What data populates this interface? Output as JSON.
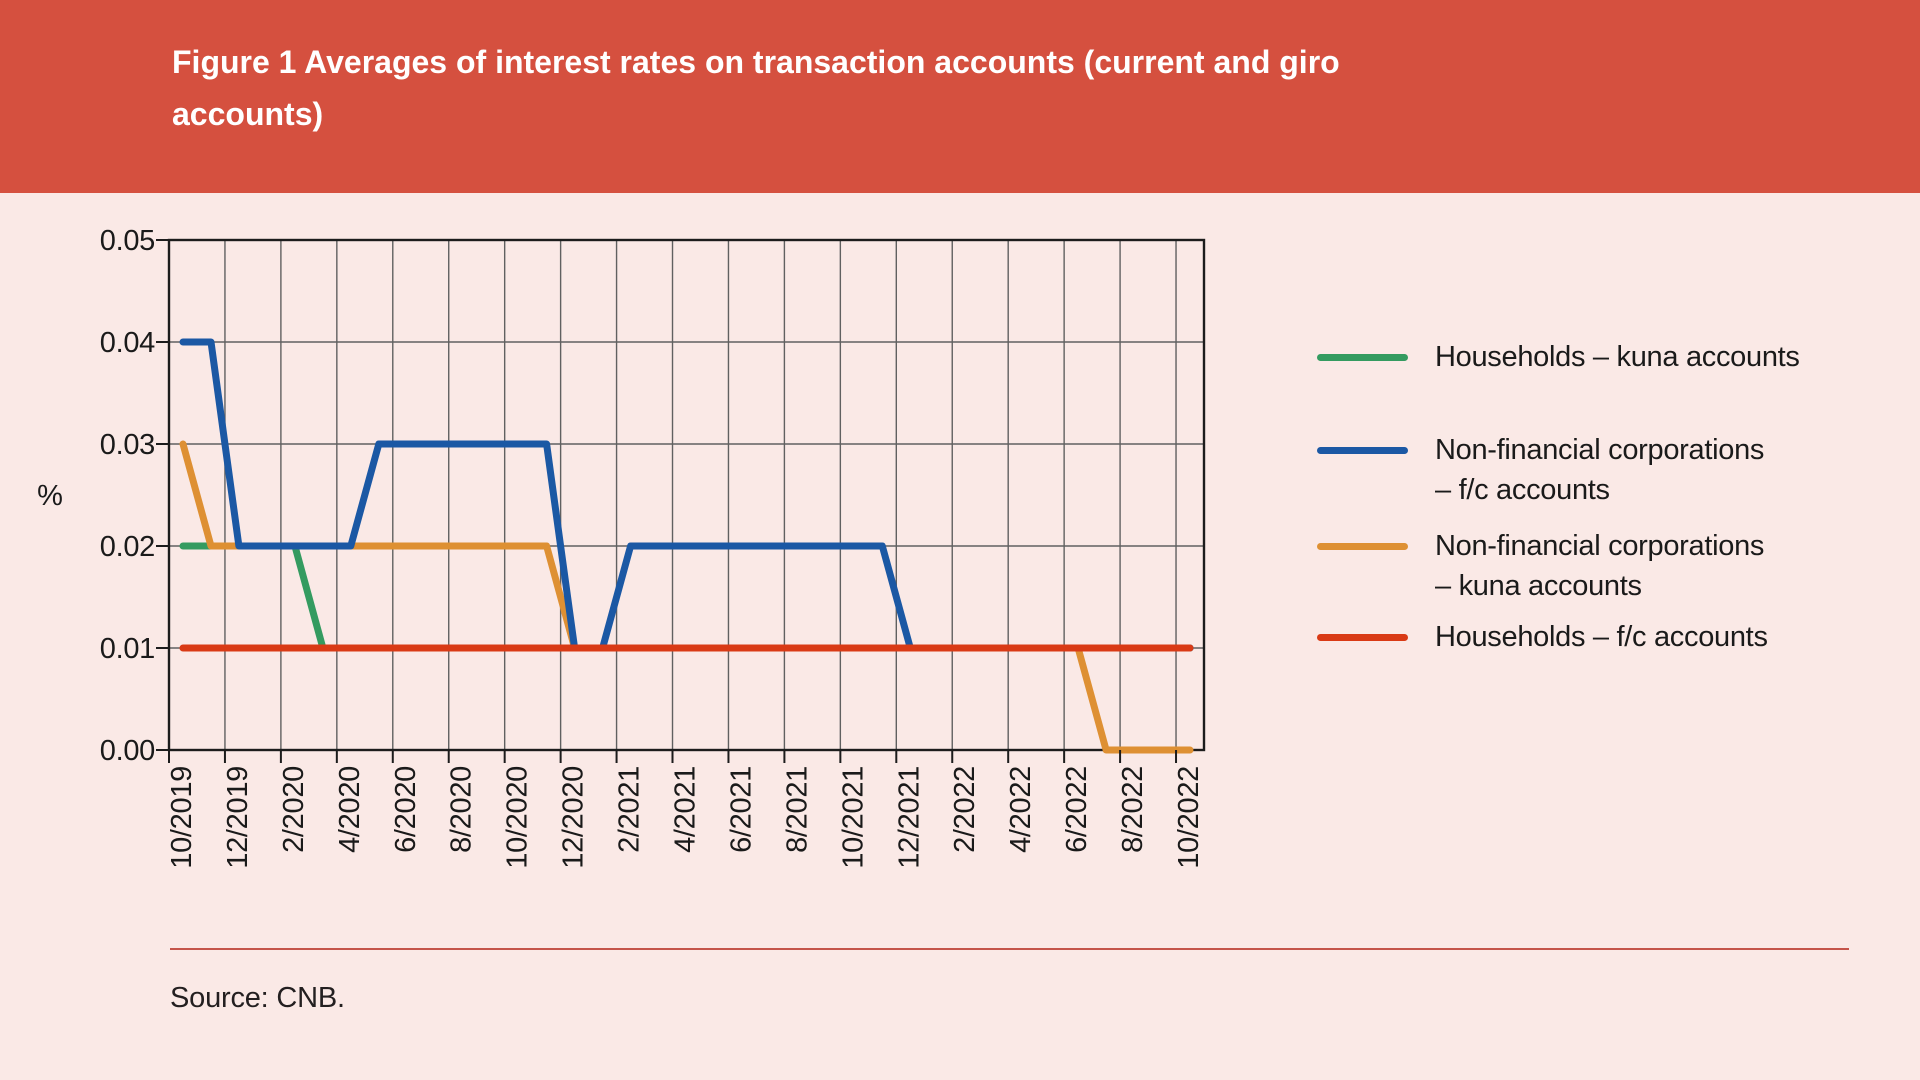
{
  "header": {
    "title": "Figure 1 Averages of interest rates on transaction accounts (current and giro accounts)",
    "title_lines": [
      "Figure 1 Averages of interest rates on transaction accounts (current and giro",
      "accounts)"
    ]
  },
  "footer": {
    "source": "Source: CNB."
  },
  "colors": {
    "banner": "#D5503F",
    "background": "#FAE9E6",
    "footer_rule": "#C4544A",
    "grid": "#606060",
    "frame": "#1C1C1C",
    "axis_text": "#1A1A1A"
  },
  "chart_data": {
    "type": "line",
    "title": "Figure 1 Averages of interest rates on transaction accounts (current and giro accounts)",
    "xlabel": "",
    "ylabel": "%",
    "ylim": [
      0,
      0.05
    ],
    "y_ticks": [
      0,
      0.01,
      0.02,
      0.03,
      0.04,
      0.05
    ],
    "y_tick_labels": [
      "0.00",
      "0.01",
      "0.02",
      "0.03",
      "0.04",
      "0.05"
    ],
    "grid": true,
    "legend_position": "right",
    "x": [
      "10/2019",
      "11/2019",
      "12/2019",
      "1/2020",
      "2/2020",
      "3/2020",
      "4/2020",
      "5/2020",
      "6/2020",
      "7/2020",
      "8/2020",
      "9/2020",
      "10/2020",
      "11/2020",
      "12/2020",
      "1/2021",
      "2/2021",
      "3/2021",
      "4/2021",
      "5/2021",
      "6/2021",
      "7/2021",
      "8/2021",
      "9/2021",
      "10/2021",
      "11/2021",
      "12/2021",
      "1/2022",
      "2/2022",
      "3/2022",
      "4/2022",
      "5/2022",
      "6/2022",
      "7/2022",
      "8/2022",
      "9/2022",
      "10/2022"
    ],
    "x_tick_labels": [
      "10/2019",
      "12/2019",
      "2/2020",
      "4/2020",
      "6/2020",
      "8/2020",
      "10/2020",
      "12/2020",
      "2/2021",
      "4/2021",
      "6/2021",
      "8/2021",
      "10/2021",
      "12/2021",
      "2/2022",
      "4/2022",
      "6/2022",
      "8/2022",
      "10/2022"
    ],
    "draw_order": [
      0,
      2,
      1,
      3
    ],
    "series": [
      {
        "key": "households-kuna",
        "name": "Households – kuna accounts",
        "label_lines": [
          "Households – kuna accounts"
        ],
        "color": "#349B60",
        "values": [
          0.02,
          0.02,
          0.02,
          0.02,
          0.02,
          0.01,
          0.01,
          0.01,
          0.01,
          0.01,
          0.01,
          0.01,
          0.01,
          0.01,
          0.01,
          0.01,
          0.01,
          0.01,
          0.01,
          0.01,
          0.01,
          0.01,
          0.01,
          0.01,
          0.01,
          0.01,
          0.01,
          0.01,
          0.01,
          0.01,
          0.01,
          0.01,
          0.01,
          0.01,
          0.01,
          0.01,
          0.01
        ]
      },
      {
        "key": "nfc-fc",
        "name": "Non-financial corporations – f/c accounts",
        "label_lines": [
          "Non-financial corporations",
          "– f/c accounts"
        ],
        "color": "#1B58A4",
        "values": [
          0.04,
          0.04,
          0.02,
          0.02,
          0.02,
          0.02,
          0.02,
          0.03,
          0.03,
          0.03,
          0.03,
          0.03,
          0.03,
          0.03,
          0.01,
          0.01,
          0.02,
          0.02,
          0.02,
          0.02,
          0.02,
          0.02,
          0.02,
          0.02,
          0.02,
          0.02,
          0.01,
          0.01,
          0.01,
          0.01,
          0.01,
          0.01,
          0.01,
          0.01,
          0.01,
          0.01,
          0.01
        ]
      },
      {
        "key": "nfc-kuna",
        "name": "Non-financial corporations – kuna accounts",
        "label_lines": [
          "Non-financial corporations",
          "– kuna accounts"
        ],
        "color": "#DE9033",
        "values": [
          0.03,
          0.02,
          0.02,
          0.02,
          0.02,
          0.02,
          0.02,
          0.02,
          0.02,
          0.02,
          0.02,
          0.02,
          0.02,
          0.02,
          0.01,
          0.01,
          0.01,
          0.01,
          0.01,
          0.01,
          0.01,
          0.01,
          0.01,
          0.01,
          0.01,
          0.01,
          0.01,
          0.01,
          0.01,
          0.01,
          0.01,
          0.01,
          0.01,
          0.0,
          0.0,
          0.0,
          0.0
        ]
      },
      {
        "key": "households-fc",
        "name": "Households – f/c accounts",
        "label_lines": [
          "Households – f/c accounts"
        ],
        "color": "#D93A15",
        "values": [
          0.01,
          0.01,
          0.01,
          0.01,
          0.01,
          0.01,
          0.01,
          0.01,
          0.01,
          0.01,
          0.01,
          0.01,
          0.01,
          0.01,
          0.01,
          0.01,
          0.01,
          0.01,
          0.01,
          0.01,
          0.01,
          0.01,
          0.01,
          0.01,
          0.01,
          0.01,
          0.01,
          0.01,
          0.01,
          0.01,
          0.01,
          0.01,
          0.01,
          0.01,
          0.01,
          0.01,
          0.01
        ]
      }
    ]
  }
}
